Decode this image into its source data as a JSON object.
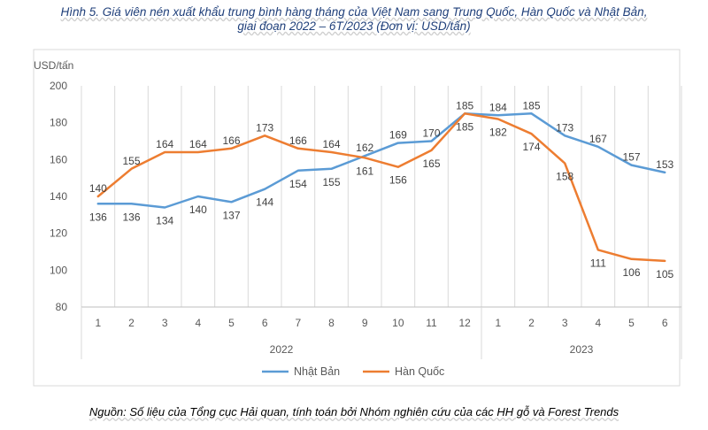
{
  "caption": {
    "line1": "Hình 5. Giá viên nén xuất khẩu trung bình hàng tháng của Việt Nam sang Trung Quốc, Hàn Quốc và Nhật Bản,",
    "line2": "giai đoạn 2022 – 6T/2023 (Đơn vị: USD/tấn)"
  },
  "source": "Nguồn: Số liệu của Tổng cục Hải quan, tính toán bởi Nhóm nghiên cứu của các HH gỗ và Forest Trends",
  "chart_data": {
    "type": "line",
    "ylabel": "USD/tấn",
    "ylim": [
      80,
      200
    ],
    "yticks": [
      80,
      100,
      120,
      140,
      160,
      180,
      200
    ],
    "grid": "vertical category gridlines",
    "categories": [
      "1",
      "2",
      "3",
      "4",
      "5",
      "6",
      "7",
      "8",
      "9",
      "10",
      "11",
      "12",
      "1",
      "2",
      "3",
      "4",
      "5",
      "6"
    ],
    "groups": [
      {
        "label": "2022",
        "count": 12
      },
      {
        "label": "2023",
        "count": 6
      }
    ],
    "series": [
      {
        "name": "Nhật Bản",
        "color": "#5b9bd5",
        "values": [
          136,
          136,
          134,
          140,
          137,
          144,
          154,
          155,
          162,
          169,
          170,
          185,
          184,
          185,
          173,
          167,
          157,
          153
        ]
      },
      {
        "name": "Hàn Quốc",
        "color": "#ed7d31",
        "values": [
          140,
          155,
          164,
          164,
          166,
          173,
          166,
          164,
          161,
          156,
          165,
          185,
          182,
          174,
          158,
          111,
          106,
          105
        ]
      }
    ],
    "legend_position": "bottom"
  }
}
